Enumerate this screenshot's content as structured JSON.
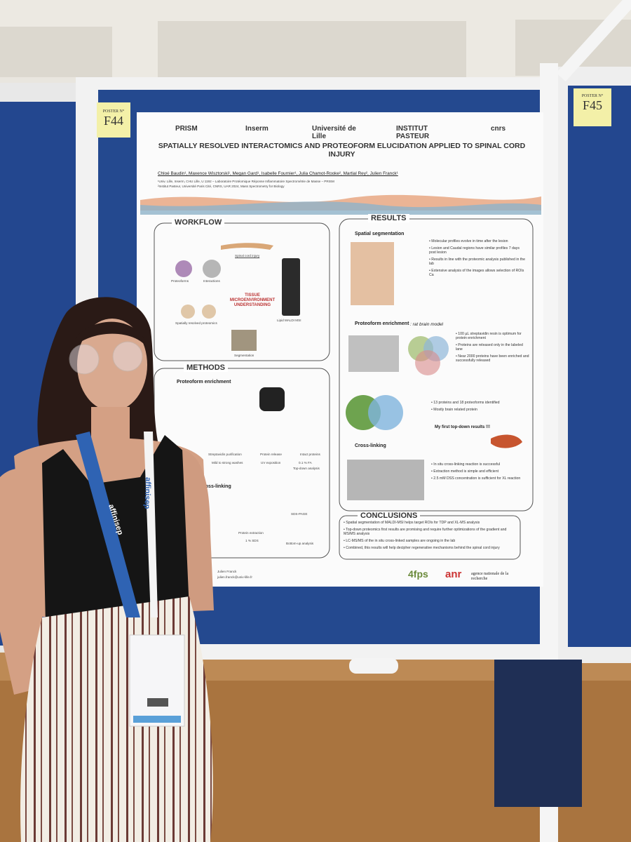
{
  "board_labels": {
    "left_caption": "POSTER N°",
    "left": "F44",
    "right_caption": "POSTER N°",
    "right": "F45"
  },
  "poster": {
    "logos": [
      "PRISM",
      "Inserm",
      "Université de Lille",
      "INSTITUT PASTEUR",
      "cnrs"
    ],
    "title": "SPATIALLY RESOLVED INTERACTOMICS AND PROTEOFORM ELUCIDATION APPLIED TO SPINAL CORD INJURY",
    "authors": "Chloé Baudin¹, Maxence Wisztorski¹, Megan Gard¹, Isabelle Fournier¹, Julia Chamot-Rooke², Martial Rey², Julien Franck¹",
    "affiliations": [
      "¹Univ. Lille, Inserm, CHU Lille, U 1192 – Laboratoire Protéomique Réponse Inflammatoire Spectrométrie de Masse – PRISM",
      "²Institut Pasteur, Université Paris Cité, CNRS, UAR 2024, Mass Spectrometry for Biology"
    ],
    "workflow": {
      "heading": "WORKFLOW",
      "spinal": "Spinal cord injury",
      "proteoforms": "Proteoforms",
      "interactions": "Interactions",
      "center": "TISSUE MICROENVIRONMENT UNDERSTANDING",
      "spatial": "Spatially resolved proteomics",
      "maldi": "Lipid MALDI MSI",
      "segmentation": "Segmentation"
    },
    "methods": {
      "heading": "METHODS",
      "enrichment": "Proteoform enrichment",
      "steps": [
        "Streptavidin purification",
        "Mild to strong washes",
        "Protein release",
        "UV exposition",
        "Intact proteins",
        "0.1 % FA",
        "Top-down analysis"
      ],
      "crosslinking": "Cross-linking",
      "cl_steps": [
        "Protein extraction",
        "1 % SDS",
        "SDS-PAGE",
        "Bottom-up analysis"
      ]
    },
    "results": {
      "heading": "RESULTS",
      "spatial_heading": "Spatial segmentation",
      "spatial_bullets": [
        "Molecular profiles evolve in time after the lesion",
        "Lesion and Caudal regions have similar profiles 7 days post lesion",
        "Results in line with the proteomic analysis published in the lab",
        "Extensive analysis of the images allows selection of ROIs Ca"
      ],
      "enrichment_heading": "Proteoform enrichment",
      "enrichment_model": ": rat brain model",
      "enrichment_bullets": [
        "100 µL streptavidin resin is optimum for protein enrichment",
        "Proteins are released only in the labeled lane",
        "Near 2000 proteins have been enriched and successfully released"
      ],
      "topdown_bullets": [
        "13 proteins and 18 proteoforms identified",
        "Mostly brain related protein"
      ],
      "topdown_note": "My first top-down results !!!",
      "crosslinking_heading": "Cross-linking",
      "crosslinking_bullets": [
        "In situ cross-linking reaction is successful",
        "Extraction method is simple and efficient",
        "2.5 mM DSS concentration is sufficient for XL reaction"
      ]
    },
    "conclusions": {
      "heading": "CONCLUSIONS",
      "bullets": [
        "Spatial segmentation of MALDI-MSI helps target ROIs for TDP and XL-MS analysis",
        "Top-down proteomics first results are promising and require further optimizations of the gradient and MS/MS analysis",
        "LC-MS/MS of the in situ cross-linked samples are ongoing in the lab",
        "Combined, this results will help decipher regenerative mechanisms behind the spinal cord injury"
      ]
    },
    "contact": [
      "Julien Franck",
      "julien.franck@univ-lille.fr"
    ],
    "footer_logos": [
      "4fps",
      "anr",
      "agence nationale de la recherche"
    ]
  },
  "lanyard": "affinisep"
}
